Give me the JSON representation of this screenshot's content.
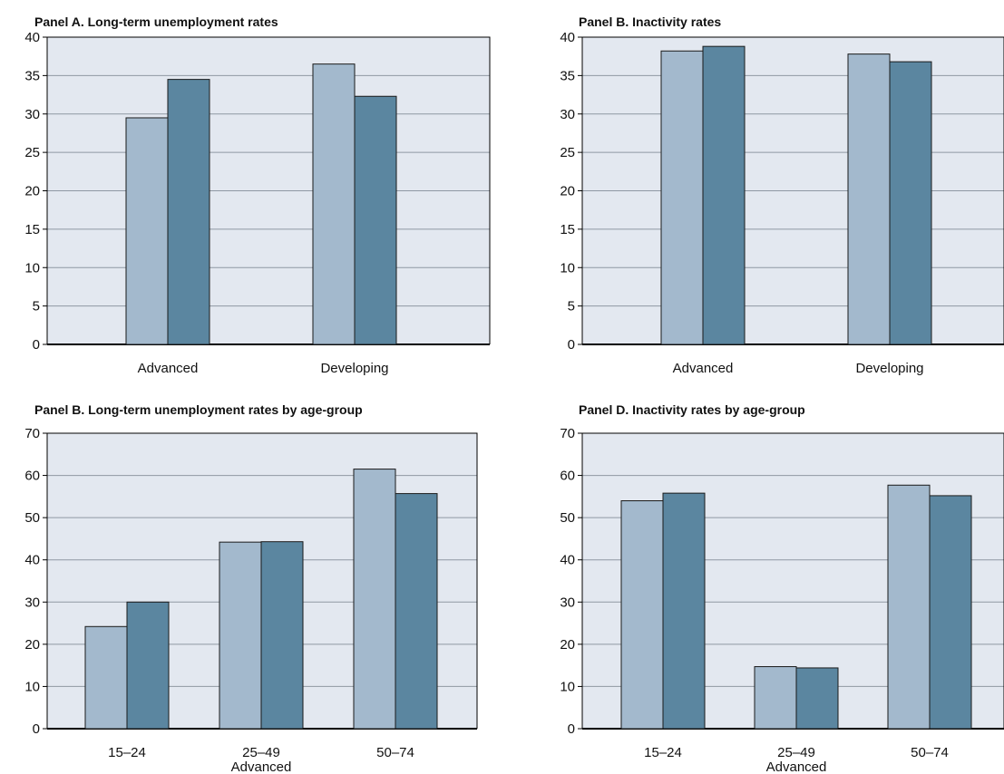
{
  "colors": {
    "plot_background": "#e3e8f0",
    "gridline": "#8f98a3",
    "series_light": "#a3b9cd",
    "series_dark": "#5b86a0",
    "axis": "#000000"
  },
  "chart_data": [
    {
      "type": "bar",
      "title": "Panel A. Long-term unemployment rates",
      "categories": [
        "Advanced",
        "Developing"
      ],
      "category_group_label": "",
      "series": [
        {
          "values": [
            29.5,
            36.5
          ]
        },
        {
          "values": [
            34.5,
            32.3
          ]
        }
      ],
      "ylim": [
        0,
        40
      ],
      "yticks": [
        0,
        5,
        10,
        15,
        20,
        25,
        30,
        35,
        40
      ],
      "grid": true,
      "xlabel": "",
      "ylabel": ""
    },
    {
      "type": "bar",
      "title": "Panel B. Inactivity rates",
      "categories": [
        "Advanced",
        "Developing"
      ],
      "category_group_label": "",
      "series": [
        {
          "values": [
            38.2,
            37.8
          ]
        },
        {
          "values": [
            38.8,
            36.8
          ]
        }
      ],
      "ylim": [
        0,
        40
      ],
      "yticks": [
        0,
        5,
        10,
        15,
        20,
        25,
        30,
        35,
        40
      ],
      "grid": true,
      "xlabel": "",
      "ylabel": ""
    },
    {
      "type": "bar",
      "title": "Panel B. Long-term unemployment rates by age-group",
      "categories": [
        "15–24",
        "25–49",
        "50–74"
      ],
      "category_group_label": "Advanced",
      "series": [
        {
          "values": [
            24.2,
            44.2,
            61.5
          ]
        },
        {
          "values": [
            30.0,
            44.3,
            55.7
          ]
        }
      ],
      "ylim": [
        0,
        70
      ],
      "yticks": [
        0,
        10,
        20,
        30,
        40,
        50,
        60,
        70
      ],
      "grid": true,
      "xlabel": "",
      "ylabel": ""
    },
    {
      "type": "bar",
      "title": "Panel D. Inactivity rates by age-group",
      "categories": [
        "15–24",
        "25–49",
        "50–74"
      ],
      "category_group_label": "Advanced",
      "series": [
        {
          "values": [
            54.0,
            14.7,
            57.7
          ]
        },
        {
          "values": [
            55.8,
            14.4,
            55.2
          ]
        }
      ],
      "ylim": [
        0,
        70
      ],
      "yticks": [
        0,
        10,
        20,
        30,
        40,
        50,
        60,
        70
      ],
      "grid": true,
      "xlabel": "",
      "ylabel": ""
    }
  ]
}
